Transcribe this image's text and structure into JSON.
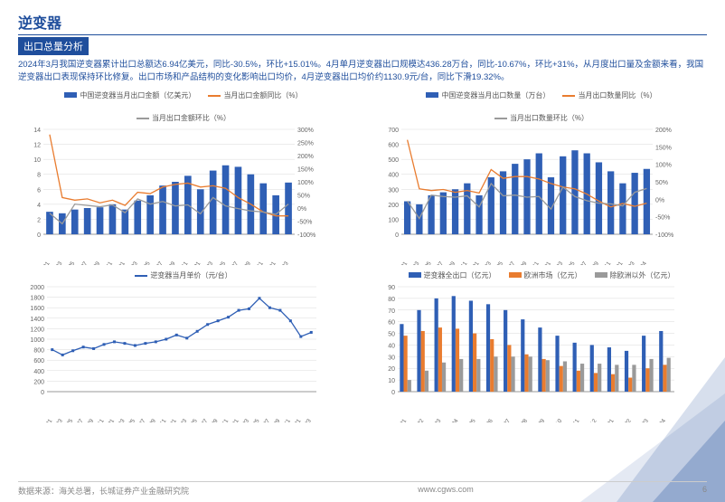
{
  "page": {
    "title": "逆变器",
    "subtitle": "出口总量分析",
    "paragraph": "2024年3月我国逆变器累计出口总额达6.94亿美元，同比-30.5%，环比+15.01%。4月单月逆变器出口规模达436.28万台，同比-10.67%，环比+31%，从月度出口量及金额来看，我国逆变器出口表现保持环比修复。出口市场和产品结构的变化影响出口均价，4月逆变器出口均价约1130.9元/台，同比下滑19.32%。",
    "source_label": "数据来源：海关总署，长城证券产业金融研究院",
    "url": "www.cgws.com",
    "page_number": "6"
  },
  "colors": {
    "brand_blue": "#1f4e9c",
    "bar_blue": "#2f5fb5",
    "line_orange": "#e97c2f",
    "line_gray": "#9a9a9a",
    "grid": "#d9d9d9",
    "axis_text": "#666666",
    "bg": "#ffffff"
  },
  "chart1": {
    "type": "combo-bar-line",
    "legend": [
      "中国逆变器当月出口金额（亿美元）",
      "当月出口金额同比（%）",
      "当月出口金额环比（%）"
    ],
    "legend_colors": [
      "#2f5fb5",
      "#e97c2f",
      "#9a9a9a"
    ],
    "yleft": {
      "min": 0,
      "max": 14,
      "step": 2
    },
    "yright": {
      "min": -100,
      "max": 300,
      "step": 50
    },
    "x_start_label": "21/01",
    "x_end_label": "24/03",
    "categories": [
      "21/01",
      "21/03",
      "21/05",
      "21/07",
      "21/09",
      "21/11",
      "22/01",
      "22/03",
      "22/05",
      "22/07",
      "22/09",
      "22/11",
      "23/01",
      "23/03",
      "23/05",
      "23/07",
      "23/09",
      "23/11",
      "24/01",
      "24/03"
    ],
    "bars": [
      3.0,
      2.8,
      3.3,
      3.5,
      3.6,
      4.0,
      3.3,
      4.5,
      5.2,
      6.5,
      7.0,
      7.8,
      6.0,
      8.5,
      9.2,
      9.0,
      8.0,
      6.8,
      5.2,
      6.9
    ],
    "line_orange": [
      280,
      40,
      30,
      35,
      20,
      30,
      10,
      60,
      55,
      80,
      90,
      95,
      80,
      85,
      75,
      40,
      15,
      -15,
      -30,
      -30
    ],
    "line_gray": [
      -20,
      -60,
      15,
      10,
      5,
      12,
      -18,
      35,
      15,
      25,
      8,
      12,
      -22,
      40,
      8,
      -2,
      -11,
      -15,
      -24,
      15
    ]
  },
  "chart2": {
    "type": "combo-bar-line",
    "legend": [
      "中国逆变器当月出口数量（万台）",
      "当月出口数量同比（%）",
      "当月出口数量环比（%）"
    ],
    "legend_colors": [
      "#2f5fb5",
      "#e97c2f",
      "#9a9a9a"
    ],
    "yleft": {
      "min": 0,
      "max": 700,
      "step": 100
    },
    "yright": {
      "min": -100,
      "max": 200,
      "step": 50
    },
    "categories": [
      "21/01",
      "21/03",
      "21/05",
      "21/07",
      "21/09",
      "21/11",
      "22/01",
      "22/03",
      "22/05",
      "22/07",
      "22/09",
      "22/11",
      "23/01",
      "23/03",
      "23/05",
      "23/07",
      "23/09",
      "23/11",
      "24/01",
      "24/03",
      "24/04"
    ],
    "bars": [
      220,
      200,
      260,
      280,
      300,
      340,
      260,
      380,
      420,
      470,
      500,
      540,
      380,
      520,
      560,
      540,
      480,
      420,
      340,
      410,
      436
    ],
    "line_orange": [
      170,
      30,
      25,
      28,
      20,
      25,
      18,
      85,
      60,
      65,
      65,
      58,
      45,
      35,
      30,
      15,
      -5,
      -22,
      -12,
      -20,
      -11
    ],
    "line_gray": [
      -5,
      -55,
      12,
      8,
      6,
      10,
      -22,
      45,
      10,
      12,
      6,
      8,
      -28,
      35,
      8,
      -4,
      -11,
      -13,
      -19,
      20,
      31
    ]
  },
  "chart3": {
    "type": "line",
    "legend": [
      "逆变器当月单价（元/台）"
    ],
    "legend_colors": [
      "#2f5fb5"
    ],
    "yleft": {
      "min": 0,
      "max": 2000,
      "step": 200
    },
    "categories": [
      "20/01",
      "20/03",
      "20/05",
      "20/07",
      "20/09",
      "20/11",
      "21/01",
      "21/03",
      "21/05",
      "21/07",
      "21/09",
      "21/11",
      "22/01",
      "22/03",
      "22/05",
      "22/07",
      "22/09",
      "22/11",
      "23/01",
      "23/03",
      "23/05",
      "23/07",
      "23/09",
      "23/11",
      "24/01",
      "24/03"
    ],
    "line": [
      800,
      700,
      780,
      850,
      820,
      900,
      950,
      920,
      880,
      920,
      950,
      1000,
      1080,
      1020,
      1150,
      1280,
      1350,
      1420,
      1550,
      1580,
      1780,
      1600,
      1550,
      1350,
      1050,
      1130
    ]
  },
  "chart4": {
    "type": "grouped-bar",
    "legend": [
      "逆变器全出口（亿元）",
      "欧洲市场（亿元）",
      "除欧洲以外（亿元）"
    ],
    "legend_colors": [
      "#2f5fb5",
      "#e97c2f",
      "#9a9a9a"
    ],
    "yleft": {
      "min": 0,
      "max": 90,
      "step": 10
    },
    "categories": [
      "23/01",
      "23/02",
      "23/03",
      "23/04",
      "23/05",
      "23/06",
      "23/07",
      "23/08",
      "23/09",
      "23/10",
      "23/11",
      "23/12",
      "24/01",
      "24/02",
      "24/03",
      "24/04"
    ],
    "series": [
      [
        58,
        70,
        80,
        82,
        78,
        75,
        70,
        62,
        55,
        48,
        42,
        40,
        38,
        35,
        48,
        52
      ],
      [
        48,
        52,
        55,
        54,
        50,
        45,
        40,
        32,
        28,
        22,
        18,
        16,
        15,
        12,
        20,
        23
      ],
      [
        10,
        18,
        25,
        28,
        28,
        30,
        30,
        30,
        27,
        26,
        24,
        24,
        23,
        23,
        28,
        29
      ]
    ]
  }
}
